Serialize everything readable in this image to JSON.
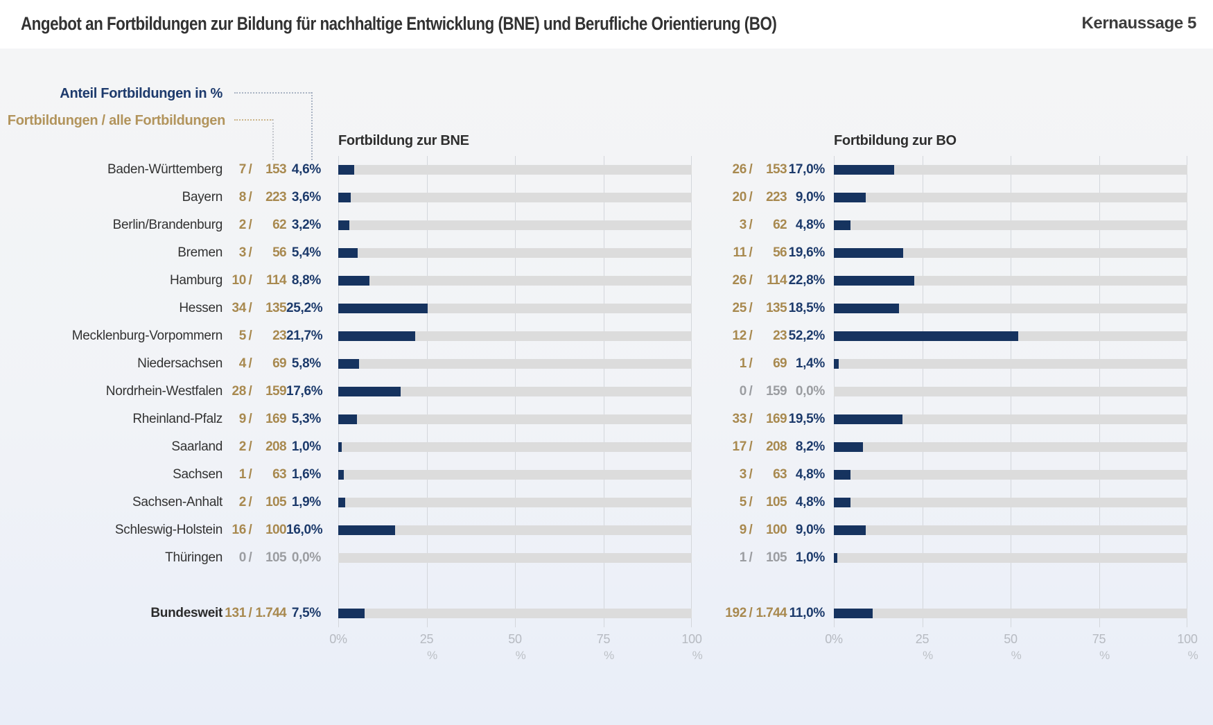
{
  "header": {
    "title": "Angebot an Fortbildungen zur Bildung für nachhaltige Entwicklung (BNE) und Berufliche Orientierung (BO)",
    "badge": "Kernaussage 5"
  },
  "legend": {
    "pct_label": "Anteil Fortbildungen  in %",
    "frac_label": "Fortbildungen / alle Fortbildungen"
  },
  "charts": [
    {
      "title": "Fortbildung zur BNE"
    },
    {
      "title": "Fortbildung zur BO"
    }
  ],
  "axis": {
    "ticks": [
      "0%",
      "25",
      "50",
      "75",
      "100"
    ],
    "sub": "%"
  },
  "colors": {
    "bar": "#16335f",
    "track": "#dcdcdc",
    "percent_text": "#1c3a6b",
    "fraction_text": "#a8894f",
    "muted_text": "#9b9da1",
    "gridline": "#d3d6db"
  },
  "rows": [
    {
      "state": "Baden-Württemberg",
      "bne": {
        "num": "7",
        "den": "153",
        "pct": "4,6%",
        "value": 4.6
      },
      "bo": {
        "num": "26",
        "den": "153",
        "pct": "17,0%",
        "value": 17.0
      }
    },
    {
      "state": "Bayern",
      "bne": {
        "num": "8",
        "den": "223",
        "pct": "3,6%",
        "value": 3.6
      },
      "bo": {
        "num": "20",
        "den": "223",
        "pct": "9,0%",
        "value": 9.0
      }
    },
    {
      "state": "Berlin/Brandenburg",
      "bne": {
        "num": "2",
        "den": "62",
        "pct": "3,2%",
        "value": 3.2
      },
      "bo": {
        "num": "3",
        "den": "62",
        "pct": "4,8%",
        "value": 4.8
      }
    },
    {
      "state": "Bremen",
      "bne": {
        "num": "3",
        "den": "56",
        "pct": "5,4%",
        "value": 5.4
      },
      "bo": {
        "num": "11",
        "den": "56",
        "pct": "19,6%",
        "value": 19.6
      }
    },
    {
      "state": "Hamburg",
      "bne": {
        "num": "10",
        "den": "114",
        "pct": "8,8%",
        "value": 8.8
      },
      "bo": {
        "num": "26",
        "den": "114",
        "pct": "22,8%",
        "value": 22.8
      }
    },
    {
      "state": "Hessen",
      "bne": {
        "num": "34",
        "den": "135",
        "pct": "25,2%",
        "value": 25.2
      },
      "bo": {
        "num": "25",
        "den": "135",
        "pct": "18,5%",
        "value": 18.5
      }
    },
    {
      "state": "Mecklenburg-Vorpommern",
      "bne": {
        "num": "5",
        "den": "23",
        "pct": "21,7%",
        "value": 21.7
      },
      "bo": {
        "num": "12",
        "den": "23",
        "pct": "52,2%",
        "value": 52.2
      }
    },
    {
      "state": "Niedersachsen",
      "bne": {
        "num": "4",
        "den": "69",
        "pct": "5,8%",
        "value": 5.8
      },
      "bo": {
        "num": "1",
        "den": "69",
        "pct": "1,4%",
        "value": 1.4
      }
    },
    {
      "state": "Nordrhein-Westfalen",
      "bne": {
        "num": "28",
        "den": "159",
        "pct": "17,6%",
        "value": 17.6
      },
      "bo": {
        "num": "0",
        "den": "159",
        "pct": "0,0%",
        "value": 0.0
      }
    },
    {
      "state": "Rheinland-Pfalz",
      "bne": {
        "num": "9",
        "den": "169",
        "pct": "5,3%",
        "value": 5.3
      },
      "bo": {
        "num": "33",
        "den": "169",
        "pct": "19,5%",
        "value": 19.5
      }
    },
    {
      "state": "Saarland",
      "bne": {
        "num": "2",
        "den": "208",
        "pct": "1,0%",
        "value": 1.0
      },
      "bo": {
        "num": "17",
        "den": "208",
        "pct": "8,2%",
        "value": 8.2
      }
    },
    {
      "state": "Sachsen",
      "bne": {
        "num": "1",
        "den": "63",
        "pct": "1,6%",
        "value": 1.6
      },
      "bo": {
        "num": "3",
        "den": "63",
        "pct": "4,8%",
        "value": 4.8
      }
    },
    {
      "state": "Sachsen-Anhalt",
      "bne": {
        "num": "2",
        "den": "105",
        "pct": "1,9%",
        "value": 1.9
      },
      "bo": {
        "num": "5",
        "den": "105",
        "pct": "4,8%",
        "value": 4.8
      }
    },
    {
      "state": "Schleswig-Holstein",
      "bne": {
        "num": "16",
        "den": "100",
        "pct": "16,0%",
        "value": 16.0
      },
      "bo": {
        "num": "9",
        "den": "100",
        "pct": "9,0%",
        "value": 9.0
      }
    },
    {
      "state": "Thüringen",
      "bne": {
        "num": "0",
        "den": "105",
        "pct": "0,0%",
        "value": 0.0
      },
      "bo": {
        "num": "1",
        "den": "105",
        "pct": "1,0%",
        "value": 1.0
      }
    }
  ],
  "total": {
    "state": "Bundesweit",
    "bne": {
      "num": "131",
      "den": "1.744",
      "pct": "7,5%",
      "value": 7.5
    },
    "bo": {
      "num": "192",
      "den": "1.744",
      "pct": "11,0%",
      "value": 11.0
    }
  },
  "chart_data": [
    {
      "type": "bar",
      "orientation": "horizontal",
      "title": "Fortbildung zur BNE",
      "unit": "%",
      "xlim": [
        0,
        100
      ],
      "xticks": [
        0,
        25,
        50,
        75,
        100
      ],
      "grid": true,
      "categories": [
        "Baden-Württemberg",
        "Bayern",
        "Berlin/Brandenburg",
        "Bremen",
        "Hamburg",
        "Hessen",
        "Mecklenburg-Vorpommern",
        "Niedersachsen",
        "Nordrhein-Westfalen",
        "Rheinland-Pfalz",
        "Saarland",
        "Sachsen",
        "Sachsen-Anhalt",
        "Schleswig-Holstein",
        "Thüringen",
        "Bundesweit"
      ],
      "values": [
        4.6,
        3.6,
        3.2,
        5.4,
        8.8,
        25.2,
        21.7,
        5.8,
        17.6,
        5.3,
        1.0,
        1.6,
        1.9,
        16.0,
        0.0,
        7.5
      ],
      "counts": [
        [
          7,
          153
        ],
        [
          8,
          223
        ],
        [
          2,
          62
        ],
        [
          3,
          56
        ],
        [
          10,
          114
        ],
        [
          34,
          135
        ],
        [
          5,
          23
        ],
        [
          4,
          69
        ],
        [
          28,
          159
        ],
        [
          9,
          169
        ],
        [
          2,
          208
        ],
        [
          1,
          63
        ],
        [
          2,
          105
        ],
        [
          16,
          100
        ],
        [
          0,
          105
        ],
        [
          131,
          1744
        ]
      ]
    },
    {
      "type": "bar",
      "orientation": "horizontal",
      "title": "Fortbildung zur BO",
      "unit": "%",
      "xlim": [
        0,
        100
      ],
      "xticks": [
        0,
        25,
        50,
        75,
        100
      ],
      "grid": true,
      "categories": [
        "Baden-Württemberg",
        "Bayern",
        "Berlin/Brandenburg",
        "Bremen",
        "Hamburg",
        "Hessen",
        "Mecklenburg-Vorpommern",
        "Niedersachsen",
        "Nordrhein-Westfalen",
        "Rheinland-Pfalz",
        "Saarland",
        "Sachsen",
        "Sachsen-Anhalt",
        "Schleswig-Holstein",
        "Thüringen",
        "Bundesweit"
      ],
      "values": [
        17.0,
        9.0,
        4.8,
        19.6,
        22.8,
        18.5,
        52.2,
        1.4,
        0.0,
        19.5,
        8.2,
        4.8,
        4.8,
        9.0,
        1.0,
        11.0
      ],
      "counts": [
        [
          26,
          153
        ],
        [
          20,
          223
        ],
        [
          3,
          62
        ],
        [
          11,
          56
        ],
        [
          26,
          114
        ],
        [
          25,
          135
        ],
        [
          12,
          23
        ],
        [
          1,
          69
        ],
        [
          0,
          159
        ],
        [
          33,
          169
        ],
        [
          17,
          208
        ],
        [
          3,
          63
        ],
        [
          5,
          105
        ],
        [
          9,
          100
        ],
        [
          1,
          105
        ],
        [
          192,
          1744
        ]
      ]
    }
  ]
}
